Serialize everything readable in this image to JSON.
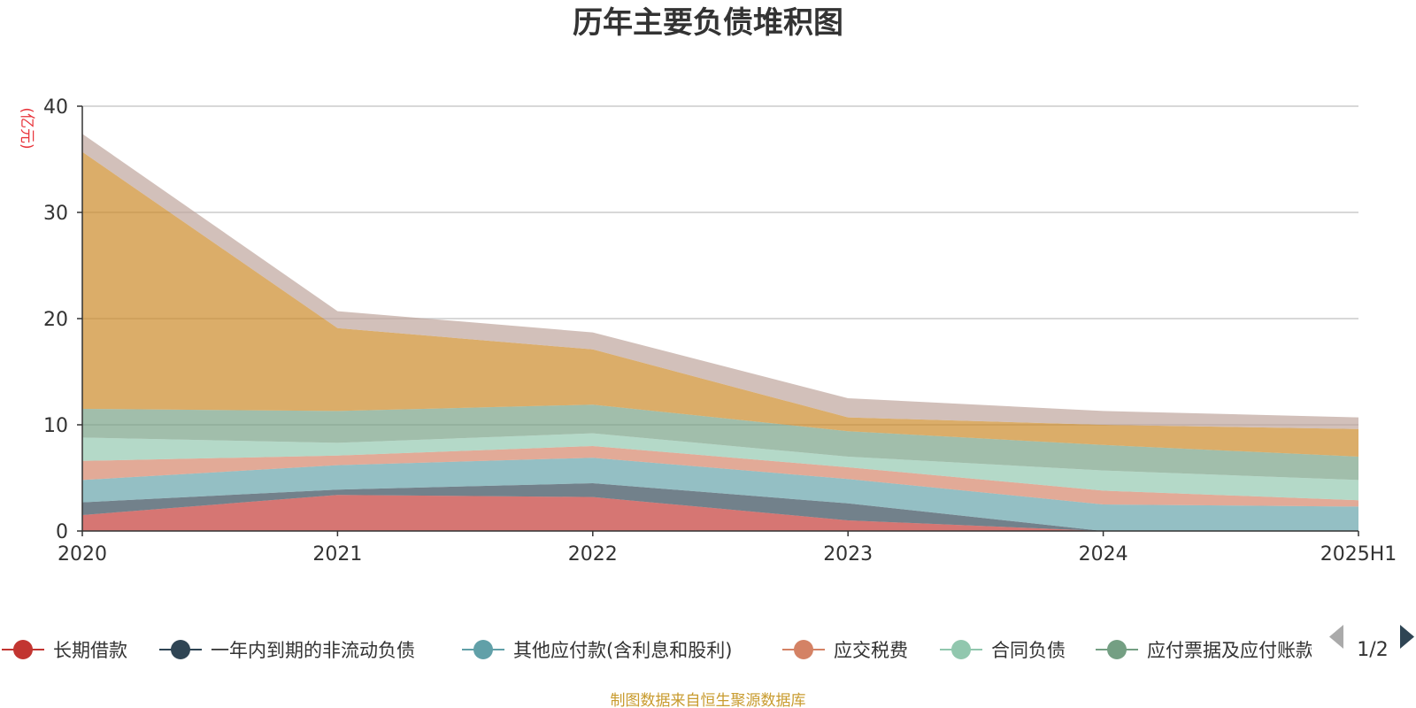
{
  "chart_data": {
    "type": "area",
    "stacked": true,
    "title": "历年主要负债堆积图",
    "ylabel": "(亿元)",
    "ylim": [
      0,
      40
    ],
    "yticks": [
      0,
      10,
      20,
      30,
      40
    ],
    "grid": true,
    "x": [
      "2020",
      "2021",
      "2022",
      "2023",
      "2024",
      "2025H1"
    ],
    "series": [
      {
        "name": "长期借款",
        "color": "#c23531",
        "values": [
          1.5,
          3.4,
          3.2,
          1.0,
          0.0,
          0.0
        ]
      },
      {
        "name": "一年内到期的非流动负债",
        "color": "#2f4554",
        "values": [
          1.2,
          0.5,
          1.3,
          1.6,
          0.0,
          0.0
        ]
      },
      {
        "name": "其他应付款(含利息和股利)",
        "color": "#61a0a8",
        "values": [
          2.1,
          2.3,
          2.4,
          2.3,
          2.5,
          2.3
        ]
      },
      {
        "name": "应交税费",
        "color": "#d48265",
        "values": [
          1.8,
          0.9,
          1.1,
          1.1,
          1.3,
          0.6
        ]
      },
      {
        "name": "合同负债",
        "color": "#91c7ae",
        "values": [
          2.2,
          1.2,
          1.2,
          1.0,
          1.9,
          1.9
        ]
      },
      {
        "name": "应付票据及应付账款",
        "color": "#749f83",
        "values": [
          2.7,
          3.0,
          2.7,
          2.4,
          2.4,
          2.2
        ]
      },
      {
        "name": "",
        "color": "#ca8622",
        "values": [
          24.2,
          7.8,
          5.2,
          1.3,
          1.9,
          2.6
        ]
      },
      {
        "name": "",
        "color": "#bda29a",
        "values": [
          1.7,
          1.6,
          1.6,
          1.8,
          1.3,
          1.1
        ]
      }
    ],
    "legend": {
      "position": "bottom",
      "page": "1/2"
    },
    "source": "制图数据来自恒生聚源数据库"
  }
}
